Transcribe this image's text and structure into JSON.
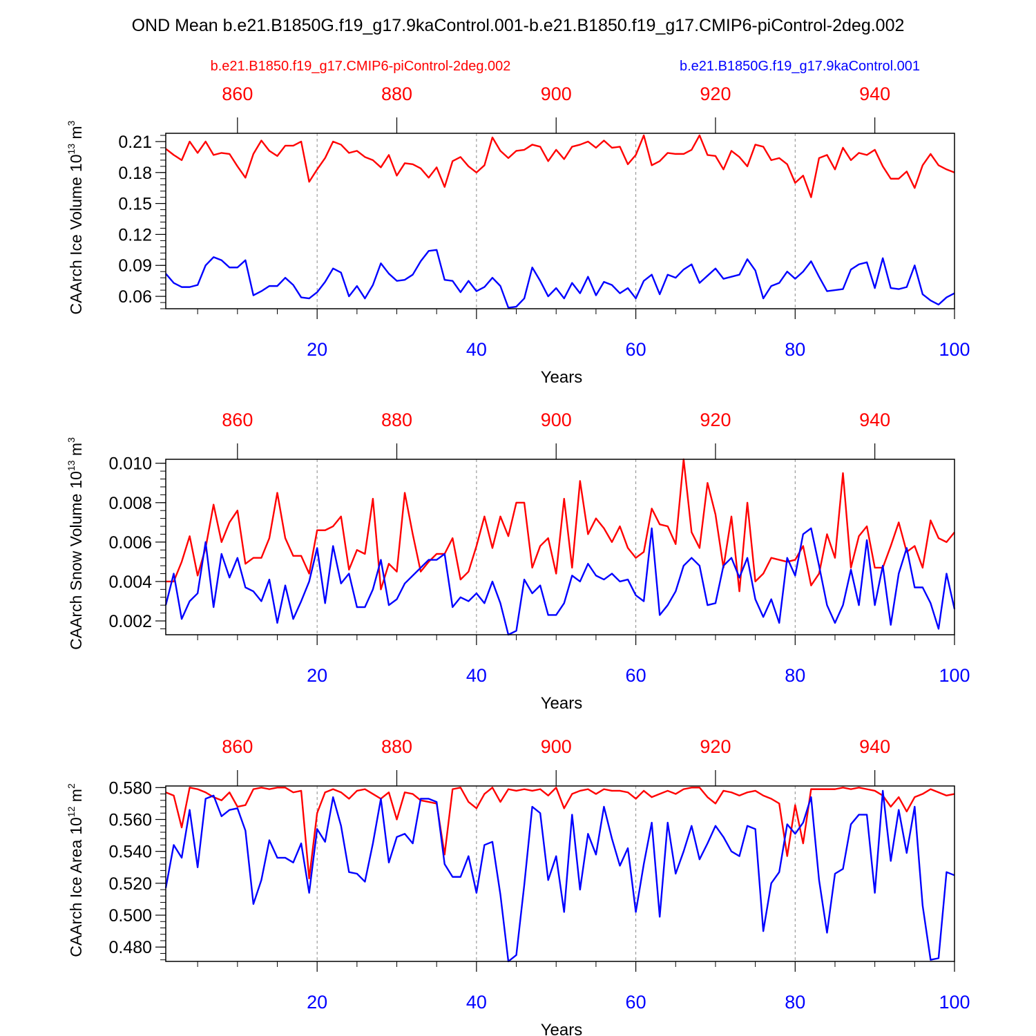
{
  "figure": {
    "title": "OND Mean b.e21.B1850G.f19_g17.9kaControl.001-b.e21.B1850.f19_g17.CMIP6-piControl-2deg.002",
    "legend_red": "b.e21.B1850.f19_g17.CMIP6-piControl-2deg.002",
    "legend_blue": "b.e21.B1850G.f19_g17.9kaControl.001",
    "colors": {
      "red": "#ff0000",
      "blue": "#0000ff",
      "axis": "#000000",
      "grid": "#888888"
    }
  },
  "chart_data": [
    {
      "type": "line",
      "ylabel": "CAArch Ice Volume",
      "yunit_base": "10",
      "yunit_exp": "13",
      "yunit_suffix": " m",
      "yunit_suffix_exp": "3",
      "xlabel": "Years",
      "xlim": [
        1,
        100
      ],
      "ylim": [
        0.048,
        0.218
      ],
      "yticks": [
        0.06,
        0.09,
        0.12,
        0.15,
        0.18,
        0.21
      ],
      "ytick_labels": [
        "0.06",
        "0.09",
        "0.12",
        "0.15",
        "0.18",
        "0.21"
      ],
      "yminor": 0.006,
      "bottom_xticks": [
        20,
        40,
        60,
        80,
        100
      ],
      "bottom_xtick_labels": [
        "20",
        "40",
        "60",
        "80",
        "100"
      ],
      "top_xticks": [
        860,
        880,
        900,
        920,
        940
      ],
      "top_xtick_labels": [
        "860",
        "880",
        "900",
        "920",
        "940"
      ],
      "top_offset": 851,
      "gridlines_x": [
        20,
        40,
        60,
        80
      ],
      "series": [
        {
          "name": "b.e21.B1850.f19_g17.CMIP6-piControl-2deg.002",
          "color": "red",
          "x_start": 1,
          "values": [
            0.203,
            0.197,
            0.192,
            0.21,
            0.199,
            0.21,
            0.197,
            0.199,
            0.198,
            0.186,
            0.175,
            0.198,
            0.211,
            0.201,
            0.196,
            0.206,
            0.206,
            0.21,
            0.171,
            0.183,
            0.194,
            0.21,
            0.207,
            0.199,
            0.201,
            0.195,
            0.192,
            0.185,
            0.197,
            0.177,
            0.189,
            0.188,
            0.184,
            0.175,
            0.185,
            0.166,
            0.191,
            0.195,
            0.186,
            0.18,
            0.187,
            0.214,
            0.201,
            0.194,
            0.201,
            0.202,
            0.207,
            0.205,
            0.191,
            0.202,
            0.193,
            0.205,
            0.207,
            0.21,
            0.204,
            0.211,
            0.204,
            0.205,
            0.188,
            0.197,
            0.216,
            0.187,
            0.191,
            0.199,
            0.198,
            0.198,
            0.202,
            0.216,
            0.197,
            0.196,
            0.183,
            0.201,
            0.195,
            0.186,
            0.207,
            0.205,
            0.192,
            0.194,
            0.188,
            0.17,
            0.177,
            0.156,
            0.194,
            0.197,
            0.183,
            0.204,
            0.192,
            0.199,
            0.197,
            0.202,
            0.186,
            0.174,
            0.174,
            0.181,
            0.165,
            0.187,
            0.198,
            0.187,
            0.183,
            0.18
          ]
        },
        {
          "name": "b.e21.B1850G.f19_g17.9kaControl.001",
          "color": "blue",
          "x_start": 1,
          "values": [
            0.082,
            0.073,
            0.069,
            0.069,
            0.071,
            0.09,
            0.098,
            0.095,
            0.088,
            0.088,
            0.095,
            0.061,
            0.065,
            0.07,
            0.07,
            0.078,
            0.071,
            0.059,
            0.058,
            0.064,
            0.074,
            0.087,
            0.083,
            0.06,
            0.07,
            0.058,
            0.071,
            0.092,
            0.082,
            0.075,
            0.076,
            0.081,
            0.094,
            0.104,
            0.105,
            0.076,
            0.075,
            0.064,
            0.075,
            0.065,
            0.069,
            0.078,
            0.07,
            0.049,
            0.05,
            0.058,
            0.088,
            0.075,
            0.06,
            0.068,
            0.058,
            0.073,
            0.063,
            0.079,
            0.061,
            0.074,
            0.071,
            0.063,
            0.068,
            0.058,
            0.075,
            0.081,
            0.062,
            0.081,
            0.078,
            0.086,
            0.091,
            0.073,
            0.08,
            0.087,
            0.077,
            0.079,
            0.081,
            0.096,
            0.085,
            0.058,
            0.07,
            0.073,
            0.084,
            0.077,
            0.084,
            0.094,
            0.079,
            0.065,
            0.066,
            0.067,
            0.086,
            0.091,
            0.093,
            0.068,
            0.097,
            0.068,
            0.067,
            0.069,
            0.09,
            0.062,
            0.056,
            0.052,
            0.059,
            0.063
          ]
        }
      ]
    },
    {
      "type": "line",
      "ylabel": "CAArch Snow Volume",
      "yunit_base": "10",
      "yunit_exp": "13",
      "yunit_suffix": " m",
      "yunit_suffix_exp": "3",
      "xlabel": "Years",
      "xlim": [
        1,
        100
      ],
      "ylim": [
        0.0013,
        0.0102
      ],
      "yticks": [
        0.002,
        0.004,
        0.006,
        0.008,
        0.01
      ],
      "ytick_labels": [
        "0.002",
        "0.004",
        "0.006",
        "0.008",
        "0.010"
      ],
      "yminor": 0.0004,
      "bottom_xticks": [
        20,
        40,
        60,
        80,
        100
      ],
      "bottom_xtick_labels": [
        "20",
        "40",
        "60",
        "80",
        "100"
      ],
      "top_xticks": [
        860,
        880,
        900,
        920,
        940
      ],
      "top_xtick_labels": [
        "860",
        "880",
        "900",
        "920",
        "940"
      ],
      "top_offset": 851,
      "gridlines_x": [
        20,
        40,
        60,
        80
      ],
      "series": [
        {
          "name": "b.e21.B1850.f19_g17.CMIP6-piControl-2deg.002",
          "color": "red",
          "x_start": 1,
          "values": [
            0.004,
            0.004,
            0.005,
            0.0063,
            0.0043,
            0.0057,
            0.0079,
            0.006,
            0.007,
            0.0076,
            0.0049,
            0.0052,
            0.0052,
            0.0062,
            0.0085,
            0.0062,
            0.0053,
            0.0053,
            0.0044,
            0.0066,
            0.0066,
            0.0068,
            0.0073,
            0.0046,
            0.0056,
            0.0054,
            0.0082,
            0.0036,
            0.0049,
            0.0045,
            0.0085,
            0.0064,
            0.0045,
            0.005,
            0.0054,
            0.0054,
            0.0062,
            0.0041,
            0.0045,
            0.0058,
            0.0073,
            0.0057,
            0.0073,
            0.0063,
            0.008,
            0.008,
            0.0047,
            0.0058,
            0.0062,
            0.0044,
            0.0082,
            0.0047,
            0.0091,
            0.0064,
            0.0072,
            0.0067,
            0.006,
            0.0068,
            0.0057,
            0.0052,
            0.0055,
            0.0077,
            0.0069,
            0.0068,
            0.0059,
            0.0102,
            0.0065,
            0.0057,
            0.009,
            0.0074,
            0.0047,
            0.0073,
            0.0035,
            0.008,
            0.004,
            0.0044,
            0.0052,
            0.0051,
            0.005,
            0.0051,
            0.0058,
            0.0038,
            0.0044,
            0.0064,
            0.0052,
            0.0095,
            0.0047,
            0.0063,
            0.0068,
            0.0047,
            0.0047,
            0.0058,
            0.007,
            0.0055,
            0.0058,
            0.0047,
            0.0071,
            0.0062,
            0.006,
            0.0065
          ]
        },
        {
          "name": "b.e21.B1850G.f19_g17.9kaControl.001",
          "color": "blue",
          "x_start": 1,
          "values": [
            0.0028,
            0.0044,
            0.0021,
            0.003,
            0.0034,
            0.006,
            0.0027,
            0.0054,
            0.0042,
            0.0052,
            0.0037,
            0.0035,
            0.003,
            0.0041,
            0.0019,
            0.0038,
            0.0021,
            0.003,
            0.004,
            0.0057,
            0.0029,
            0.0058,
            0.0039,
            0.0044,
            0.0027,
            0.0027,
            0.0036,
            0.0051,
            0.0028,
            0.0031,
            0.0039,
            0.0043,
            0.0047,
            0.0051,
            0.0051,
            0.0054,
            0.0027,
            0.0032,
            0.003,
            0.0034,
            0.0029,
            0.004,
            0.0029,
            0.0013,
            0.0015,
            0.0041,
            0.0034,
            0.0038,
            0.0023,
            0.0023,
            0.0029,
            0.0043,
            0.004,
            0.0049,
            0.0043,
            0.0041,
            0.0044,
            0.004,
            0.0041,
            0.0033,
            0.003,
            0.0067,
            0.0023,
            0.0028,
            0.0035,
            0.0048,
            0.0052,
            0.0048,
            0.0028,
            0.0029,
            0.0048,
            0.0052,
            0.0042,
            0.0052,
            0.0031,
            0.0022,
            0.0031,
            0.0019,
            0.0052,
            0.0043,
            0.0064,
            0.0067,
            0.0048,
            0.0028,
            0.0019,
            0.0028,
            0.0046,
            0.0028,
            0.0061,
            0.0028,
            0.0048,
            0.0018,
            0.0044,
            0.0057,
            0.0037,
            0.0037,
            0.0029,
            0.0016,
            0.0044,
            0.0026
          ]
        }
      ]
    },
    {
      "type": "line",
      "ylabel": "CAArch Ice Area",
      "yunit_base": "10",
      "yunit_exp": "12",
      "yunit_suffix": " m",
      "yunit_suffix_exp": "2",
      "xlabel": "Years",
      "xlim": [
        1,
        100
      ],
      "ylim": [
        0.471,
        0.581
      ],
      "yticks": [
        0.48,
        0.5,
        0.52,
        0.54,
        0.56,
        0.58
      ],
      "ytick_labels": [
        "0.480",
        "0.500",
        "0.520",
        "0.540",
        "0.560",
        "0.580"
      ],
      "yminor": 0.004,
      "bottom_xticks": [
        20,
        40,
        60,
        80,
        100
      ],
      "bottom_xtick_labels": [
        "20",
        "40",
        "60",
        "80",
        "100"
      ],
      "top_xticks": [
        860,
        880,
        900,
        920,
        940
      ],
      "top_xtick_labels": [
        "860",
        "880",
        "900",
        "920",
        "940"
      ],
      "top_offset": 851,
      "gridlines_x": [
        20,
        40,
        60,
        80
      ],
      "series": [
        {
          "name": "b.e21.B1850.f19_g17.CMIP6-piControl-2deg.002",
          "color": "red",
          "x_start": 1,
          "values": [
            0.577,
            0.575,
            0.555,
            0.58,
            0.579,
            0.577,
            0.574,
            0.572,
            0.577,
            0.568,
            0.569,
            0.579,
            0.58,
            0.579,
            0.58,
            0.58,
            0.577,
            0.578,
            0.523,
            0.564,
            0.577,
            0.579,
            0.577,
            0.573,
            0.578,
            0.579,
            0.576,
            0.573,
            0.577,
            0.56,
            0.577,
            0.576,
            0.572,
            0.571,
            0.57,
            0.538,
            0.579,
            0.58,
            0.571,
            0.567,
            0.576,
            0.58,
            0.571,
            0.579,
            0.578,
            0.579,
            0.578,
            0.579,
            0.575,
            0.58,
            0.567,
            0.576,
            0.578,
            0.579,
            0.576,
            0.579,
            0.578,
            0.578,
            0.577,
            0.573,
            0.578,
            0.574,
            0.576,
            0.578,
            0.576,
            0.579,
            0.58,
            0.58,
            0.574,
            0.57,
            0.578,
            0.577,
            0.575,
            0.577,
            0.578,
            0.575,
            0.573,
            0.57,
            0.537,
            0.569,
            0.545,
            0.579,
            0.579,
            0.579,
            0.579,
            0.58,
            0.579,
            0.58,
            0.579,
            0.578,
            0.575,
            0.568,
            0.574,
            0.565,
            0.574,
            0.576,
            0.579,
            0.577,
            0.575,
            0.576
          ]
        },
        {
          "name": "b.e21.B1850G.f19_g17.9kaControl.001",
          "color": "blue",
          "x_start": 1,
          "values": [
            0.517,
            0.544,
            0.536,
            0.566,
            0.53,
            0.573,
            0.575,
            0.562,
            0.566,
            0.567,
            0.553,
            0.507,
            0.522,
            0.547,
            0.536,
            0.536,
            0.533,
            0.545,
            0.514,
            0.554,
            0.546,
            0.574,
            0.556,
            0.527,
            0.526,
            0.521,
            0.545,
            0.573,
            0.533,
            0.549,
            0.551,
            0.545,
            0.573,
            0.573,
            0.571,
            0.532,
            0.524,
            0.524,
            0.537,
            0.514,
            0.544,
            0.546,
            0.513,
            0.471,
            0.475,
            0.519,
            0.568,
            0.564,
            0.522,
            0.537,
            0.502,
            0.563,
            0.516,
            0.551,
            0.538,
            0.568,
            0.548,
            0.531,
            0.542,
            0.502,
            0.532,
            0.558,
            0.499,
            0.558,
            0.526,
            0.54,
            0.556,
            0.535,
            0.545,
            0.556,
            0.549,
            0.54,
            0.537,
            0.556,
            0.554,
            0.49,
            0.52,
            0.527,
            0.557,
            0.551,
            0.558,
            0.574,
            0.522,
            0.489,
            0.526,
            0.529,
            0.557,
            0.563,
            0.563,
            0.514,
            0.578,
            0.534,
            0.566,
            0.539,
            0.568,
            0.506,
            0.472,
            0.473,
            0.527,
            0.525
          ]
        }
      ]
    }
  ]
}
